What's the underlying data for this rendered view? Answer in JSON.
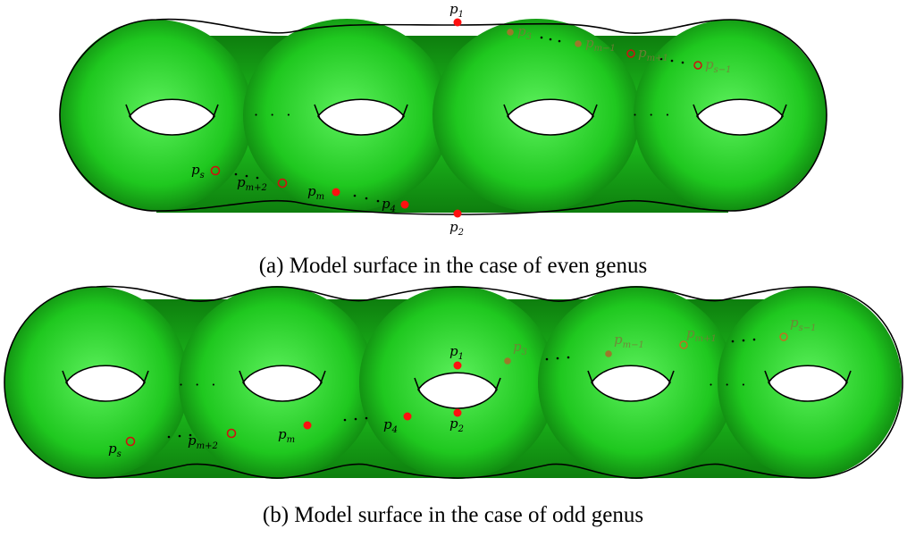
{
  "colors": {
    "surface_light": "#5cf05c",
    "surface_mid": "#1fc81f",
    "surface_dark": "#0e7e0e",
    "marked_point": "#ff1010",
    "open_point": "#d01010",
    "faded_point": "#9a7a2a",
    "outline": "#000000"
  },
  "panel_a": {
    "caption": "(a) Model surface in the case of even genus",
    "labels": {
      "p1": {
        "base": "p",
        "sub": "1"
      },
      "p2": {
        "base": "p",
        "sub": "2"
      },
      "p3": {
        "base": "p",
        "sub": "3"
      },
      "p4": {
        "base": "p",
        "sub": "4"
      },
      "pm": {
        "base": "p",
        "sub": "m"
      },
      "pm_minus_1": {
        "base": "p",
        "sub": "m−1"
      },
      "pm_plus_1": {
        "base": "p",
        "sub": "m+1"
      },
      "pm_plus_2": {
        "base": "p",
        "sub": "m+2"
      },
      "ps": {
        "base": "p",
        "sub": "s"
      },
      "ps_minus_1": {
        "base": "p",
        "sub": "s−1"
      }
    },
    "ellipsis": "· · ·"
  },
  "panel_b": {
    "caption": "(b) Model surface in the case of odd genus",
    "labels": {
      "p1": {
        "base": "p",
        "sub": "1"
      },
      "p2": {
        "base": "p",
        "sub": "2"
      },
      "p3": {
        "base": "p",
        "sub": "3"
      },
      "p4": {
        "base": "p",
        "sub": "4"
      },
      "pm": {
        "base": "p",
        "sub": "m"
      },
      "pm_minus_1": {
        "base": "p",
        "sub": "m−1"
      },
      "pm_plus_1": {
        "base": "p",
        "sub": "m+1"
      },
      "pm_plus_2": {
        "base": "p",
        "sub": "m+2"
      },
      "ps": {
        "base": "p",
        "sub": "s"
      },
      "ps_minus_1": {
        "base": "p",
        "sub": "s−1"
      }
    },
    "ellipsis": "· · ·"
  }
}
